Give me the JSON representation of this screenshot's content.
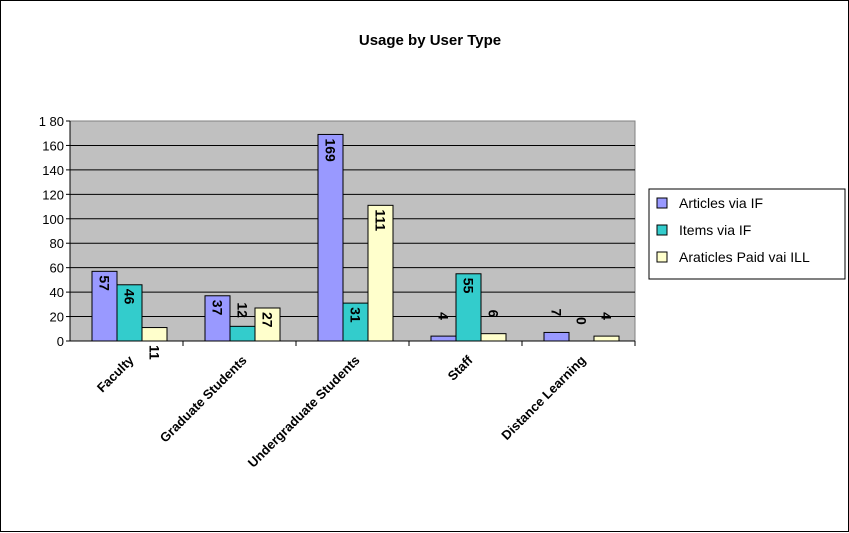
{
  "chart_data": {
    "type": "bar",
    "title": "Usage by User Type",
    "xlabel": "",
    "ylabel": "",
    "categories": [
      "Faculty",
      "Graduate Students",
      "Undergraduate Students",
      "Staff",
      "Distance Learning"
    ],
    "series": [
      {
        "name": "Articles via IF",
        "values": [
          57,
          37,
          169,
          4,
          7
        ]
      },
      {
        "name": "Items via IF",
        "values": [
          46,
          12,
          31,
          55,
          0
        ]
      },
      {
        "name": "Araticles Paid vai ILL",
        "values": [
          11,
          27,
          111,
          6,
          4
        ]
      }
    ],
    "ylim": [
      0,
      180
    ],
    "yticks": [
      0,
      20,
      40,
      60,
      80,
      100,
      120,
      140,
      160,
      180
    ],
    "ytick_labels": [
      "0",
      "20",
      "40",
      "60",
      "80",
      "100",
      "120",
      "140",
      "160",
      "1 80"
    ],
    "grid": true,
    "legend_position": "right",
    "colors": {
      "plot_background": "#c0c0c0",
      "series": [
        "#9999ff",
        "#33cccc",
        "#ffffcc"
      ]
    }
  }
}
